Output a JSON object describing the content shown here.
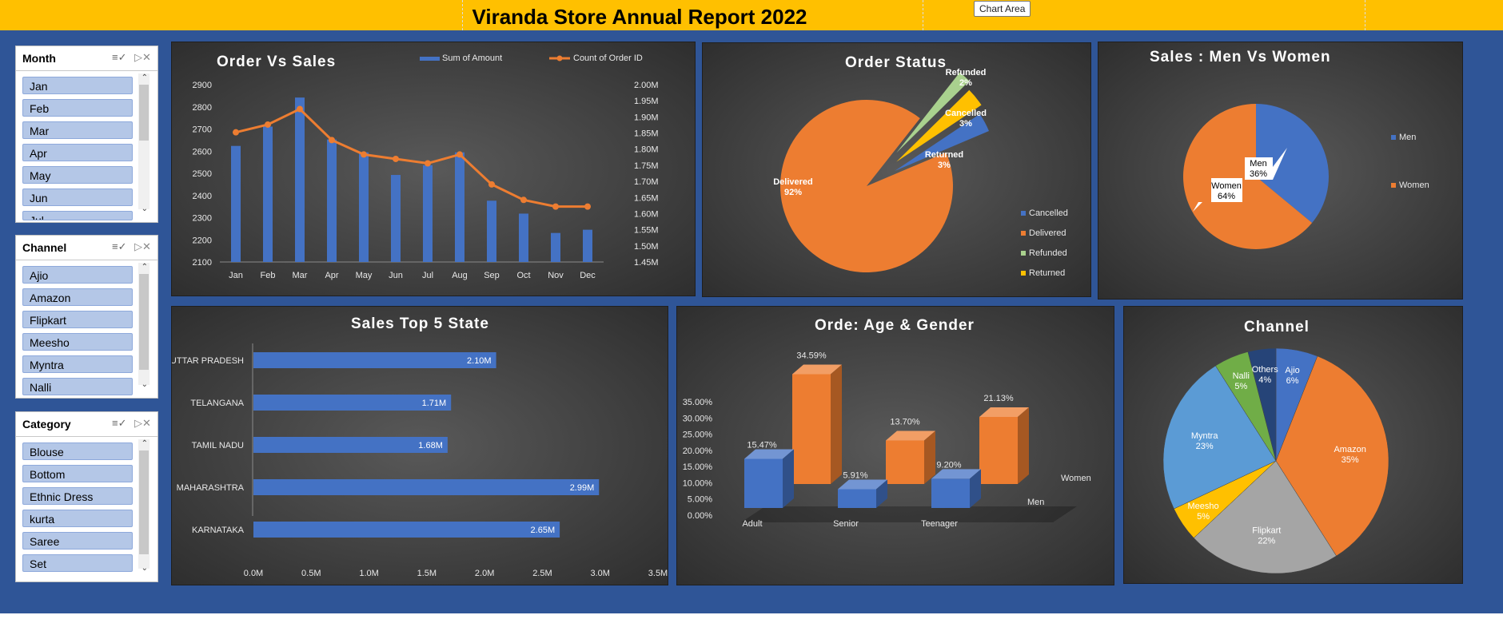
{
  "title": "Viranda Store Annual Report 2022",
  "chart_area_tooltip": "Chart Area",
  "slicers": [
    {
      "header": "Month",
      "items": [
        "Jan",
        "Feb",
        "Mar",
        "Apr",
        "May",
        "Jun",
        "Jul"
      ]
    },
    {
      "header": "Channel",
      "items": [
        "Ajio",
        "Amazon",
        "Flipkart",
        "Meesho",
        "Myntra",
        "Nalli"
      ]
    },
    {
      "header": "Category",
      "items": [
        "Blouse",
        "Bottom",
        "Ethnic Dress",
        "kurta",
        "Saree",
        "Set"
      ]
    }
  ],
  "colors": {
    "blue": "#4472c4",
    "orange": "#ed7d31",
    "gray": "#a5a5a5",
    "yellow": "#ffc000",
    "green": "#70ad47",
    "lightblue": "#5b9bd5",
    "navy": "#264478"
  },
  "chart_data": [
    {
      "title": "Order Vs Sales",
      "type": "bar",
      "categories": [
        "Jan",
        "Feb",
        "Mar",
        "Apr",
        "May",
        "Jun",
        "Jul",
        "Aug",
        "Sep",
        "Oct",
        "Nov",
        "Dec"
      ],
      "series": [
        {
          "name": "Sum of Amount",
          "type": "bar",
          "axis": "right",
          "values": [
            1.81,
            1.87,
            1.96,
            1.83,
            1.79,
            1.72,
            1.75,
            1.79,
            1.64,
            1.6,
            1.54,
            1.55
          ]
        },
        {
          "name": "Count of Order ID",
          "type": "line",
          "axis": "left",
          "values": [
            2685,
            2720,
            2790,
            2650,
            2585,
            2565,
            2545,
            2585,
            2450,
            2380,
            2350,
            2350
          ]
        }
      ],
      "y_left": {
        "min": 2100,
        "max": 2900,
        "ticks": [
          "2900",
          "2800",
          "2700",
          "2600",
          "2500",
          "2400",
          "2300",
          "2200",
          "2100"
        ]
      },
      "y_right": {
        "min": 1.45,
        "max": 2.0,
        "ticks": [
          "2.00M",
          "1.95M",
          "1.90M",
          "1.85M",
          "1.80M",
          "1.75M",
          "1.70M",
          "1.65M",
          "1.60M",
          "1.55M",
          "1.50M",
          "1.45M"
        ]
      },
      "legend": "top"
    },
    {
      "title": "Order Status",
      "type": "pie",
      "labels": [
        "Delivered",
        "Returned",
        "Cancelled",
        "Refunded"
      ],
      "values": [
        92,
        3,
        3,
        2
      ],
      "data_labels": [
        "Delivered 92%",
        "Returned 3%",
        "Cancelled 3%",
        "Refunded 2%"
      ],
      "legend_entries": [
        "Cancelled",
        "Delivered",
        "Refunded",
        "Returned"
      ],
      "legend": "right"
    },
    {
      "title": "Sales : Men Vs Women",
      "type": "pie",
      "labels": [
        "Men",
        "Women"
      ],
      "values": [
        36,
        64
      ],
      "legend": "right"
    },
    {
      "title": "Sales Top 5 State",
      "type": "bar",
      "orientation": "horizontal",
      "categories": [
        "UTTAR PRADESH",
        "TELANGANA",
        "TAMIL NADU",
        "MAHARASHTRA",
        "KARNATAKA"
      ],
      "values": [
        2.1,
        1.71,
        1.68,
        2.99,
        2.65
      ],
      "value_labels": [
        "2.10M",
        "1.71M",
        "1.68M",
        "2.99M",
        "2.65M"
      ],
      "x_ticks": [
        "0.0M",
        "0.5M",
        "1.0M",
        "1.5M",
        "2.0M",
        "2.5M",
        "3.0M",
        "3.5M"
      ],
      "xlim": [
        0,
        3.5
      ]
    },
    {
      "title": "Orde: Age & Gender",
      "type": "bar",
      "categories": [
        "Adult",
        "Senior",
        "Teenager"
      ],
      "series": [
        {
          "name": "Men",
          "values": [
            15.47,
            5.91,
            9.2
          ],
          "labels": [
            "15.47%",
            "5.91%",
            "9.20%"
          ]
        },
        {
          "name": "Women",
          "values": [
            34.59,
            13.7,
            21.13
          ],
          "labels": [
            "34.59%",
            "13.70%",
            "21.13%"
          ]
        }
      ],
      "y_ticks": [
        "35.00%",
        "30.00%",
        "25.00%",
        "20.00%",
        "15.00%",
        "10.00%",
        "5.00%",
        "0.00%"
      ],
      "ylim": [
        0,
        35
      ]
    },
    {
      "title": "Channel",
      "type": "pie",
      "labels": [
        "Ajio",
        "Amazon",
        "Flipkart",
        "Meesho",
        "Myntra",
        "Nalli",
        "Others"
      ],
      "values": [
        6,
        35,
        22,
        5,
        23,
        5,
        4
      ],
      "pct_labels": [
        "6%",
        "35%",
        "22%",
        "5%",
        "23%",
        "5%",
        "4%"
      ]
    }
  ]
}
